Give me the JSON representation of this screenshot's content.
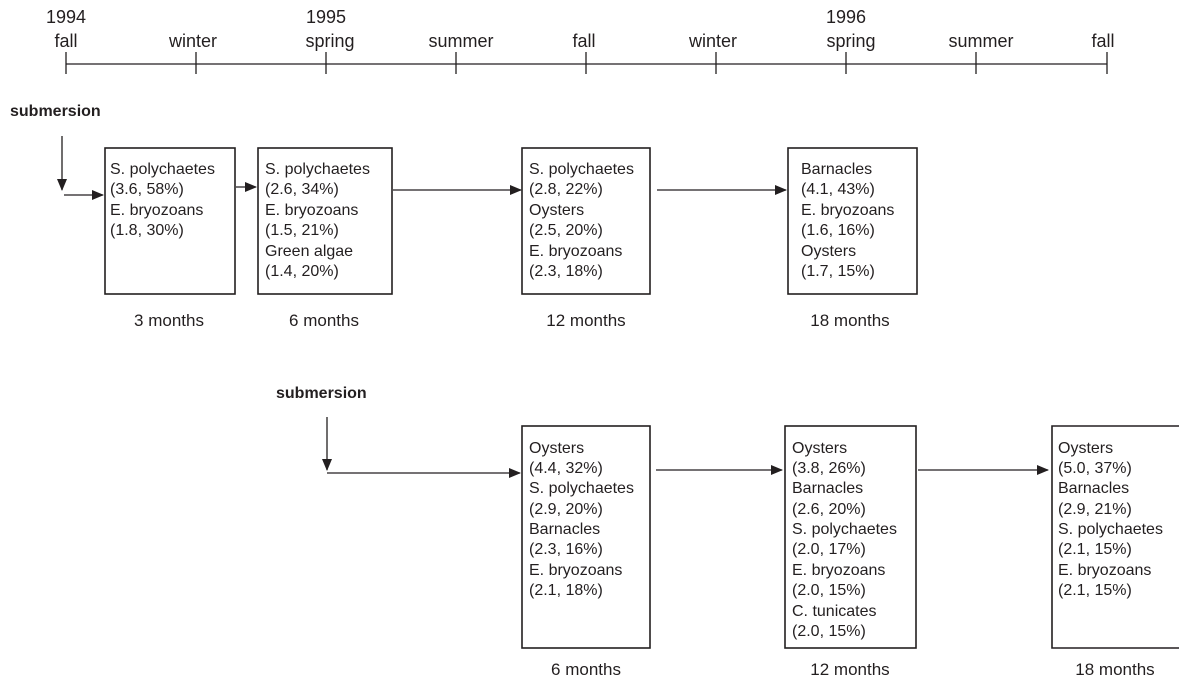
{
  "timeline": {
    "years": [
      "1994",
      "1995",
      "1996"
    ],
    "seasons": [
      "fall",
      "winter",
      "spring",
      "summer",
      "fall",
      "winter",
      "spring",
      "summer",
      "fall"
    ]
  },
  "series": [
    {
      "submersion_label": "submersion",
      "stages": [
        {
          "duration": "3 months",
          "lines": [
            "S. polychaetes",
            "(3.6, 58%)",
            "E. bryozoans",
            "(1.8, 30%)"
          ]
        },
        {
          "duration": "6 months",
          "lines": [
            "S. polychaetes",
            "(2.6, 34%)",
            "E. bryozoans",
            "(1.5, 21%)",
            "Green algae",
            "(1.4, 20%)"
          ]
        },
        {
          "duration": "12 months",
          "lines": [
            "S. polychaetes",
            "(2.8, 22%)",
            "Oysters",
            "(2.5, 20%)",
            "E. bryozoans",
            "(2.3, 18%)"
          ]
        },
        {
          "duration": "18 months",
          "lines": [
            "Barnacles",
            "(4.1, 43%)",
            "E. bryozoans",
            "(1.6, 16%)",
            "Oysters",
            "(1.7, 15%)"
          ]
        }
      ]
    },
    {
      "submersion_label": "submersion",
      "stages": [
        {
          "duration": "6 months",
          "lines": [
            "Oysters",
            "(4.4, 32%)",
            "S. polychaetes",
            "(2.9, 20%)",
            "Barnacles",
            "(2.3, 16%)",
            "E. bryozoans",
            "(2.1, 18%)"
          ]
        },
        {
          "duration": "12 months",
          "lines": [
            "Oysters",
            "(3.8, 26%)",
            "Barnacles",
            "(2.6, 20%)",
            "S. polychaetes",
            "(2.0, 17%)",
            "E. bryozoans",
            "(2.0, 15%)",
            "C. tunicates",
            "(2.0, 15%)"
          ]
        },
        {
          "duration": "18 months",
          "lines": [
            "Oysters",
            "(5.0, 37%)",
            "Barnacles",
            "(2.9, 21%)",
            "S. polychaetes",
            "(2.1, 15%)",
            "E. bryozoans",
            "(2.1, 15%)"
          ]
        }
      ]
    }
  ]
}
